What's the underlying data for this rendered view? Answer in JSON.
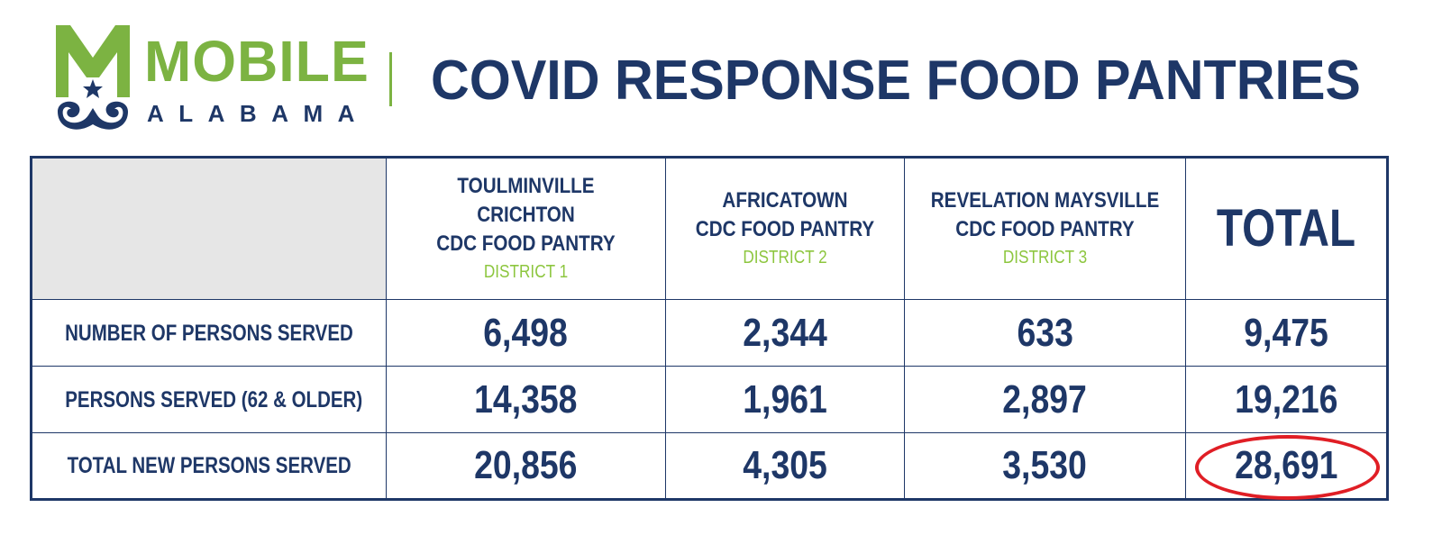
{
  "header": {
    "logo_word": "MOBILE",
    "logo_sub": "ALABAMA",
    "title": "COVID RESPONSE FOOD PANTRIES"
  },
  "colors": {
    "navy": "#1e3767",
    "green": "#7cb342",
    "district_green": "#8dc63f",
    "highlight_red": "#e01e25",
    "blank_cell": "#e6e6e6"
  },
  "table": {
    "columns": [
      {
        "line1": "TOULMINVILLE CRICHTON",
        "line2": "CDC FOOD PANTRY",
        "district": "DISTRICT 1"
      },
      {
        "line1": "AFRICATOWN",
        "line2": "CDC FOOD PANTRY",
        "district": "DISTRICT 2"
      },
      {
        "line1": "REVELATION MAYSVILLE",
        "line2": "CDC FOOD PANTRY",
        "district": "DISTRICT 3"
      }
    ],
    "total_label": "TOTAL",
    "rows": [
      {
        "label": "NUMBER OF PERSONS SERVED",
        "values": [
          "6,498",
          "2,344",
          "633"
        ],
        "total": "9,475"
      },
      {
        "label": "PERSONS SERVED (62 & OLDER)",
        "values": [
          "14,358",
          "1,961",
          "2,897"
        ],
        "total": "19,216"
      },
      {
        "label": "TOTAL NEW PERSONS SERVED",
        "values": [
          "20,856",
          "4,305",
          "3,530"
        ],
        "total": "28,691"
      }
    ],
    "highlighted_cell": "rows.2.total"
  },
  "icons": {
    "logo": "mobile-alabama-m-logo-icon"
  }
}
